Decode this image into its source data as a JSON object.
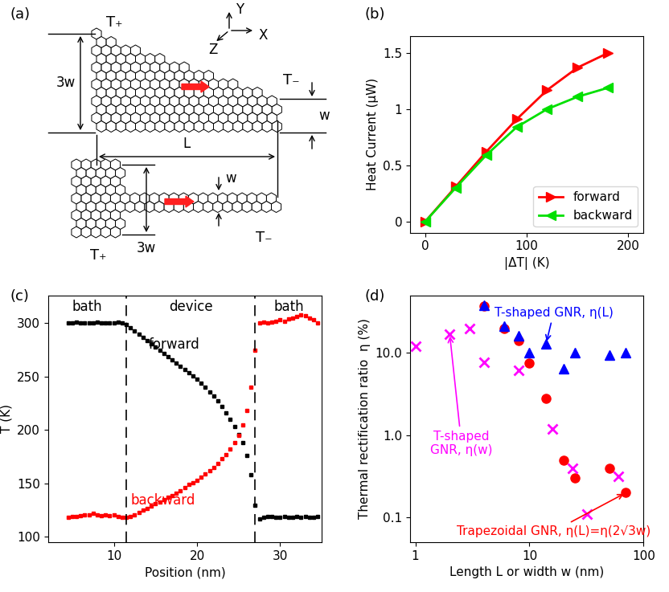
{
  "diagram": {
    "panel": "(a)",
    "hot_bath": "T₊",
    "cold_bath": "T₋",
    "wide_width": "3w",
    "narrow_width": "w",
    "length": "L",
    "axis_names": [
      "Y",
      "Z",
      "X"
    ]
  },
  "chart_data": [
    {
      "panel": "(b)",
      "type": "line",
      "xlabel": "|ΔT| (K)",
      "ylabel": "Heat Current (μW)",
      "xlim": [
        -15,
        215
      ],
      "ylim": [
        -0.1,
        1.65
      ],
      "xticks": [
        0,
        100,
        200
      ],
      "yticks": [
        0,
        0.5,
        1,
        1.5
      ],
      "legend": "lower right",
      "series": [
        {
          "name": "forward",
          "color": "#ff0000",
          "marker": "triangle_right",
          "x": [
            0,
            30,
            60,
            90,
            120,
            150,
            180
          ],
          "values": [
            0,
            0.31,
            0.62,
            0.91,
            1.17,
            1.37,
            1.5
          ]
        },
        {
          "name": "backward",
          "color": "#00e000",
          "marker": "triangle_left",
          "x": [
            0,
            30,
            60,
            90,
            120,
            150,
            180
          ],
          "values": [
            0,
            0.3,
            0.59,
            0.84,
            1.0,
            1.11,
            1.19
          ]
        }
      ]
    },
    {
      "panel": "(c)",
      "type": "scatter",
      "xlabel": "Position (nm)",
      "ylabel": "T (K)",
      "xlim": [
        2.1,
        35
      ],
      "ylim": [
        95,
        326
      ],
      "xticks": [
        10,
        20,
        30
      ],
      "yticks": [
        100,
        150,
        200,
        250,
        300
      ],
      "boundaries": [
        11.5,
        27
      ],
      "regions": [
        "bath",
        "device",
        "bath"
      ],
      "x": [
        4.5,
        5,
        5.5,
        6,
        6.5,
        7,
        7.5,
        8,
        8.5,
        9,
        9.5,
        10,
        10.5,
        11,
        11.5,
        12,
        12.5,
        13,
        13.5,
        14,
        14.5,
        15,
        15.5,
        16,
        16.5,
        17,
        17.5,
        18,
        18.5,
        19,
        19.5,
        20,
        20.5,
        21,
        21.5,
        22,
        22.5,
        23,
        23.5,
        24,
        24.5,
        25,
        25.5,
        26,
        26.5,
        27,
        27.5,
        28,
        28.5,
        29,
        29.5,
        30,
        30.5,
        31,
        31.5,
        32,
        32.5,
        33,
        33.5,
        34,
        34.5
      ],
      "series": [
        {
          "name": "forward",
          "color": "#000000",
          "marker": "square",
          "values": [
            300,
            300,
            301,
            300,
            300,
            300,
            300,
            301,
            300,
            300,
            300,
            300,
            301,
            300,
            299,
            296,
            293,
            290,
            287,
            284,
            281,
            278,
            275,
            272,
            269,
            266,
            263,
            260,
            257,
            254,
            251,
            248,
            244,
            240,
            236,
            232,
            227,
            222,
            216,
            210,
            203,
            196,
            188,
            176,
            158,
            130,
            117,
            118,
            119,
            119,
            118,
            118,
            119,
            118,
            118,
            119,
            118,
            119,
            118,
            118,
            119
          ]
        },
        {
          "name": "backward",
          "color": "#ff0000",
          "marker": "square",
          "values": [
            118,
            119,
            119,
            120,
            121,
            121,
            122,
            121,
            120,
            121,
            120,
            121,
            119,
            118,
            118,
            119,
            121,
            123,
            125,
            127,
            129,
            131,
            133,
            135,
            137,
            139,
            141,
            143,
            146,
            149,
            151,
            153,
            156,
            159,
            162,
            165,
            169,
            173,
            177,
            182,
            188,
            195,
            205,
            218,
            240,
            275,
            300,
            301,
            300,
            301,
            302,
            303,
            302,
            304,
            305,
            306,
            308,
            307,
            305,
            303,
            300
          ]
        }
      ]
    },
    {
      "panel": "(d)",
      "type": "scatter",
      "log": true,
      "xlabel": "Length L or width w (nm)",
      "ylabel": "Thermal rectification ratio  η (%)",
      "xlim": [
        0.9,
        100
      ],
      "ylim": [
        0.05,
        50
      ],
      "xticks": [
        1,
        10,
        100
      ],
      "yticks": [
        0.1,
        {
          "value": 1,
          "label": "1.0"
        },
        {
          "value": 10,
          "label": "10.0"
        }
      ],
      "series": [
        {
          "color": "#ff0000",
          "marker": "circle",
          "x": [
            4,
            6,
            8,
            10,
            14,
            20,
            25,
            50,
            70
          ],
          "values": [
            37,
            20,
            14,
            7.5,
            2.8,
            0.5,
            0.3,
            0.4,
            0.2
          ]
        },
        {
          "color": "#0000ff",
          "marker": "triangle_up",
          "x": [
            4,
            6,
            8,
            10,
            14,
            20,
            25,
            50,
            70
          ],
          "values": [
            38,
            21,
            16,
            10,
            13,
            6.5,
            10,
            9.5,
            10
          ]
        },
        {
          "color": "#ff00ff",
          "marker": "x",
          "x": [
            1,
            2,
            3,
            4,
            8,
            16,
            24,
            32,
            60
          ],
          "values": [
            12,
            17,
            20,
            7.7,
            6.2,
            1.2,
            0.4,
            0.11,
            0.32
          ]
        }
      ],
      "annotations": [
        {
          "text": "T-shaped GNR, η(L)",
          "color": "#0000ff",
          "x": 14,
          "y": 13
        },
        {
          "text": "T-shaped\nGNR, η(w)",
          "color": "#ff00ff",
          "x": 2,
          "y": 17
        },
        {
          "text": "Trapezoidal GNR, η(L)=η(2√3w)",
          "color": "#ff0000",
          "x": 70,
          "y": 0.2
        }
      ]
    }
  ]
}
